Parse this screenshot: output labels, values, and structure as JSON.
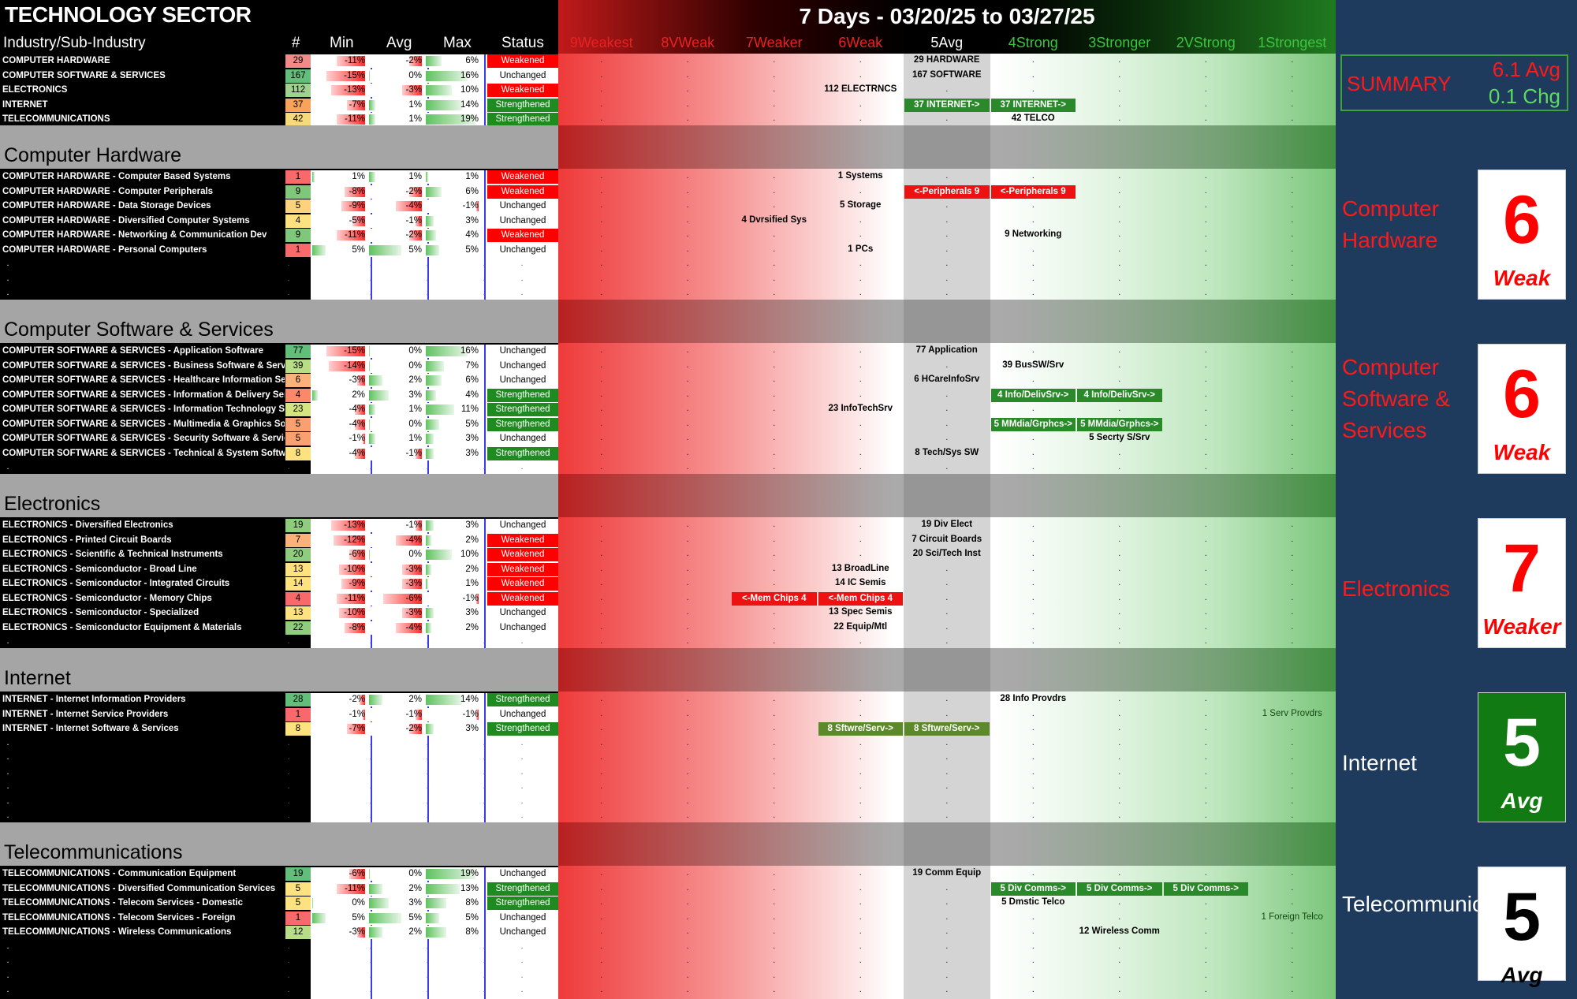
{
  "title": "TECHNOLOGY SECTOR",
  "period": "7 Days - 03/20/25 to 03/27/25",
  "columns": {
    "industry": "Industry/Sub-Industry",
    "count": "#",
    "min": "Min",
    "avg": "Avg",
    "max": "Max",
    "status": "Status"
  },
  "bands": [
    {
      "label": "9Weakest",
      "color": "#e82222"
    },
    {
      "label": "8VWeak",
      "color": "#e82222"
    },
    {
      "label": "7Weaker",
      "color": "#e82222"
    },
    {
      "label": "6Weak",
      "color": "#e82222"
    },
    {
      "label": "5Avg",
      "color": "#ffffff"
    },
    {
      "label": "4Strong",
      "color": "#3ec43e"
    },
    {
      "label": "3Stronger",
      "color": "#3ec43e"
    },
    {
      "label": "2VStrong",
      "color": "#3ec43e"
    },
    {
      "label": "1Strongest",
      "color": "#3ec43e"
    }
  ],
  "colors": {
    "weakened": "#ff0000",
    "strengthened": "#1f8a1f",
    "unchanged": "#ffffff",
    "pillRed": "#ee1111",
    "pillGreen": "#2a8a2a",
    "pillOlive": "#5c8a2a"
  },
  "summary": {
    "label": "SUMMARY",
    "avg": "6.1 Avg",
    "chg": "0.1 Chg"
  },
  "sections": [
    {
      "key": "overview",
      "title": "",
      "score": null,
      "rows": [
        {
          "name": "COMPUTER HARDWARE",
          "count": "29",
          "cc": "#f28a8a",
          "min": "-11%",
          "avg": "-2%",
          "max": "6%",
          "mn": -11,
          "av": -2,
          "mx": 6,
          "status": "Weakened",
          "marks": [
            {
              "band": 4,
              "text": "29 HARDWARE"
            }
          ]
        },
        {
          "name": "COMPUTER SOFTWARE & SERVICES",
          "count": "167",
          "cc": "#63be7b",
          "min": "-15%",
          "avg": "0%",
          "max": "16%",
          "mn": -15,
          "av": 0,
          "mx": 16,
          "status": "Unchanged",
          "marks": [
            {
              "band": 4,
              "text": "167 SOFTWARE"
            }
          ]
        },
        {
          "name": "ELECTRONICS",
          "count": "112",
          "cc": "#9fd28f",
          "min": "-13%",
          "avg": "-3%",
          "max": "10%",
          "mn": -13,
          "av": -3,
          "mx": 10,
          "status": "Weakened",
          "marks": [
            {
              "band": 3,
              "text": "112 ELECTRNCS"
            }
          ]
        },
        {
          "name": "INTERNET",
          "count": "37",
          "cc": "#f7a35a",
          "min": "-7%",
          "avg": "1%",
          "max": "14%",
          "mn": -7,
          "av": 1,
          "mx": 14,
          "status": "Strengthened",
          "pills": [
            {
              "band": 4,
              "text": "37 INTERNET->",
              "c": "g"
            },
            {
              "band": 5,
              "text": "37 INTERNET->",
              "c": "g"
            }
          ]
        },
        {
          "name": "TELECOMMUNICATIONS",
          "count": "42",
          "cc": "#f7d87a",
          "min": "-11%",
          "avg": "1%",
          "max": "19%",
          "mn": -11,
          "av": 1,
          "mx": 19,
          "status": "Strengthened",
          "marks": [
            {
              "band": 5,
              "text": "42 TELCO"
            }
          ]
        }
      ]
    },
    {
      "key": "hardware",
      "title": "Computer Hardware",
      "label": "Computer Hardware",
      "score": "6",
      "word": "Weak",
      "scoreColor": "#ff0000",
      "scoreBg": "#ffffff",
      "labelColor": "#ff1a1a",
      "rows": [
        {
          "name": "COMPUTER HARDWARE - Computer Based Systems",
          "count": "1",
          "cc": "#f8696b",
          "min": "1%",
          "avg": "1%",
          "max": "1%",
          "mn": 1,
          "av": 1,
          "mx": 1,
          "status": "Weakened",
          "marks": [
            {
              "band": 3,
              "text": "1 Systems"
            }
          ]
        },
        {
          "name": "COMPUTER HARDWARE - Computer Peripherals",
          "count": "9",
          "cc": "#7ec77b",
          "min": "-8%",
          "avg": "-2%",
          "max": "6%",
          "mn": -8,
          "av": -2,
          "mx": 6,
          "status": "Weakened",
          "pills": [
            {
              "band": 4,
              "text": "<-Peripherals 9",
              "c": "r"
            },
            {
              "band": 5,
              "text": "<-Peripherals 9",
              "c": "r"
            }
          ]
        },
        {
          "name": "COMPUTER HARDWARE - Data Storage Devices",
          "count": "5",
          "cc": "#fdd27f",
          "min": "-9%",
          "avg": "-4%",
          "max": "-1%",
          "mn": -9,
          "av": -4,
          "mx": -1,
          "status": "Unchanged",
          "marks": [
            {
              "band": 3,
              "text": "5 Storage"
            }
          ]
        },
        {
          "name": "COMPUTER HARDWARE - Diversified Computer Systems",
          "count": "4",
          "cc": "#fde27f",
          "min": "-5%",
          "avg": "-1%",
          "max": "3%",
          "mn": -5,
          "av": -1,
          "mx": 3,
          "status": "Unchanged",
          "marks": [
            {
              "band": 2,
              "text": "4 Dvrsified Sys"
            }
          ]
        },
        {
          "name": "COMPUTER HARDWARE - Networking & Communication Dev",
          "count": "9",
          "cc": "#7ec77b",
          "min": "-11%",
          "avg": "-2%",
          "max": "4%",
          "mn": -11,
          "av": -2,
          "mx": 4,
          "status": "Weakened",
          "marks": [
            {
              "band": 5,
              "text": "9 Networking"
            }
          ]
        },
        {
          "name": "COMPUTER HARDWARE - Personal Computers",
          "count": "1",
          "cc": "#f8696b",
          "min": "5%",
          "avg": "5%",
          "max": "5%",
          "mn": 5,
          "av": 5,
          "mx": 5,
          "status": "Unchanged",
          "marks": [
            {
              "band": 3,
              "text": "1 PCs"
            }
          ]
        },
        {
          "empty": true
        },
        {
          "empty": true
        },
        {
          "empty": true
        }
      ]
    },
    {
      "key": "software",
      "title": "Computer Software & Services",
      "label": "Computer Software & Services",
      "score": "6",
      "word": "Weak",
      "scoreColor": "#ff0000",
      "scoreBg": "#ffffff",
      "labelColor": "#ff1a1a",
      "rows": [
        {
          "name": "COMPUTER SOFTWARE & SERVICES - Application Software",
          "count": "77",
          "cc": "#63be7b",
          "min": "-15%",
          "avg": "0%",
          "max": "16%",
          "mn": -15,
          "av": 0,
          "mx": 16,
          "status": "Unchanged",
          "marks": [
            {
              "band": 4,
              "text": "77 Application"
            }
          ]
        },
        {
          "name": "COMPUTER SOFTWARE & SERVICES - Business Software & Services",
          "count": "39",
          "cc": "#b7dd86",
          "min": "-14%",
          "avg": "0%",
          "max": "7%",
          "mn": -14,
          "av": 0,
          "mx": 7,
          "status": "Unchanged",
          "marks": [
            {
              "band": 5,
              "text": "39 BusSW/Srv"
            }
          ]
        },
        {
          "name": "COMPUTER SOFTWARE & SERVICES - Healthcare Information Services",
          "count": "6",
          "cc": "#fbb27a",
          "min": "-3%",
          "avg": "2%",
          "max": "6%",
          "mn": -3,
          "av": 2,
          "mx": 6,
          "status": "Unchanged",
          "marks": [
            {
              "band": 4,
              "text": "6 HCareInfoSrv"
            }
          ]
        },
        {
          "name": "COMPUTER SOFTWARE & SERVICES - Information & Delivery Services",
          "count": "4",
          "cc": "#f8896b",
          "min": "2%",
          "avg": "3%",
          "max": "4%",
          "mn": 2,
          "av": 3,
          "mx": 4,
          "status": "Strengthened",
          "pills": [
            {
              "band": 5,
              "text": "4 Info/DelivSrv->",
              "c": "g"
            },
            {
              "band": 6,
              "text": "4 Info/DelivSrv->",
              "c": "g"
            }
          ]
        },
        {
          "name": "COMPUTER SOFTWARE & SERVICES - Information Technology Services",
          "count": "23",
          "cc": "#d4e482",
          "min": "-4%",
          "avg": "1%",
          "max": "11%",
          "mn": -4,
          "av": 1,
          "mx": 11,
          "status": "Strengthened",
          "marks": [
            {
              "band": 3,
              "text": "23 InfoTechSrv"
            }
          ]
        },
        {
          "name": "COMPUTER SOFTWARE & SERVICES - Multimedia & Graphics Software",
          "count": "5",
          "cc": "#f9a070",
          "min": "-4%",
          "avg": "0%",
          "max": "5%",
          "mn": -4,
          "av": 0,
          "mx": 5,
          "status": "Strengthened",
          "pills": [
            {
              "band": 5,
              "text": "5 MMdia/Grphcs->",
              "c": "g"
            },
            {
              "band": 6,
              "text": "5 MMdia/Grphcs->",
              "c": "g"
            }
          ]
        },
        {
          "name": "COMPUTER SOFTWARE & SERVICES - Security Software & Services",
          "count": "5",
          "cc": "#f9a070",
          "min": "-1%",
          "avg": "1%",
          "max": "3%",
          "mn": -1,
          "av": 1,
          "mx": 3,
          "status": "Unchanged",
          "marks": [
            {
              "band": 6,
              "text": "5 Secrty S/Srv"
            }
          ]
        },
        {
          "name": "COMPUTER SOFTWARE & SERVICES - Technical & System Software",
          "count": "8",
          "cc": "#fde27f",
          "min": "-4%",
          "avg": "-1%",
          "max": "3%",
          "mn": -4,
          "av": -1,
          "mx": 3,
          "status": "Strengthened",
          "marks": [
            {
              "band": 4,
              "text": "8 Tech/Sys SW"
            }
          ]
        },
        {
          "empty": true
        }
      ]
    },
    {
      "key": "electronics",
      "title": "Electronics",
      "label": "Electronics",
      "score": "7",
      "word": "Weaker",
      "scoreColor": "#ff0000",
      "scoreBg": "#ffffff",
      "labelColor": "#ff1a1a",
      "rows": [
        {
          "name": "ELECTRONICS - Diversified Electronics",
          "count": "19",
          "cc": "#8fcc7e",
          "min": "-13%",
          "avg": "-1%",
          "max": "3%",
          "mn": -13,
          "av": -1,
          "mx": 3,
          "status": "Unchanged",
          "marks": [
            {
              "band": 4,
              "text": "19 Div Elect"
            }
          ]
        },
        {
          "name": "ELECTRONICS - Printed Circuit Boards",
          "count": "7",
          "cc": "#fbb27a",
          "min": "-12%",
          "avg": "-4%",
          "max": "2%",
          "mn": -12,
          "av": -4,
          "mx": 2,
          "status": "Weakened",
          "marks": [
            {
              "band": 4,
              "text": "7 Circuit Boards"
            }
          ]
        },
        {
          "name": "ELECTRONICS - Scientific & Technical Instruments",
          "count": "20",
          "cc": "#8fcc7e",
          "min": "-6%",
          "avg": "0%",
          "max": "10%",
          "mn": -6,
          "av": 0,
          "mx": 10,
          "status": "Weakened",
          "marks": [
            {
              "band": 4,
              "text": "20 Sci/Tech Inst"
            }
          ]
        },
        {
          "name": "ELECTRONICS - Semiconductor - Broad Line",
          "count": "13",
          "cc": "#fde27f",
          "min": "-10%",
          "avg": "-3%",
          "max": "2%",
          "mn": -10,
          "av": -3,
          "mx": 2,
          "status": "Weakened",
          "marks": [
            {
              "band": 3,
              "text": "13 BroadLine"
            }
          ]
        },
        {
          "name": "ELECTRONICS - Semiconductor - Integrated Circuits",
          "count": "14",
          "cc": "#fde27f",
          "min": "-9%",
          "avg": "-3%",
          "max": "1%",
          "mn": -9,
          "av": -3,
          "mx": 1,
          "status": "Weakened",
          "marks": [
            {
              "band": 3,
              "text": "14 IC Semis"
            }
          ]
        },
        {
          "name": "ELECTRONICS - Semiconductor - Memory Chips",
          "count": "4",
          "cc": "#f8696b",
          "min": "-11%",
          "avg": "-6%",
          "max": "-1%",
          "mn": -11,
          "av": -6,
          "mx": -1,
          "status": "Weakened",
          "pills": [
            {
              "band": 2,
              "text": "<-Mem Chips 4",
              "c": "r"
            },
            {
              "band": 3,
              "text": "<-Mem Chips 4",
              "c": "r"
            }
          ]
        },
        {
          "name": "ELECTRONICS - Semiconductor - Specialized",
          "count": "13",
          "cc": "#fde27f",
          "min": "-10%",
          "avg": "-3%",
          "max": "3%",
          "mn": -10,
          "av": -3,
          "mx": 3,
          "status": "Unchanged",
          "marks": [
            {
              "band": 3,
              "text": "13 Spec Semis"
            }
          ]
        },
        {
          "name": "ELECTRONICS - Semiconductor Equipment & Materials",
          "count": "22",
          "cc": "#8fcc7e",
          "min": "-8%",
          "avg": "-4%",
          "max": "2%",
          "mn": -8,
          "av": -4,
          "mx": 2,
          "status": "Unchanged",
          "marks": [
            {
              "band": 3,
              "text": "22 Equip/Mtl"
            }
          ]
        },
        {
          "empty": true
        }
      ]
    },
    {
      "key": "internet",
      "title": "Internet",
      "label": "Internet",
      "score": "5",
      "word": "Avg",
      "scoreColor": "#ffffff",
      "scoreBg": "#127a12",
      "labelColor": "#ffffff",
      "rows": [
        {
          "name": "INTERNET - Internet Information Providers",
          "count": "28",
          "cc": "#63be7b",
          "min": "-2%",
          "avg": "2%",
          "max": "14%",
          "mn": -2,
          "av": 2,
          "mx": 14,
          "status": "Strengthened",
          "marks": [
            {
              "band": 5,
              "text": "28 Info Provdrs"
            }
          ]
        },
        {
          "name": "INTERNET - Internet Service Providers",
          "count": "1",
          "cc": "#f8696b",
          "min": "-1%",
          "avg": "-1%",
          "max": "-1%",
          "mn": -1,
          "av": -1,
          "mx": -1,
          "status": "Unchanged",
          "marks": [
            {
              "band": 8,
              "text": "1 Serv Provdrs"
            }
          ]
        },
        {
          "name": "INTERNET - Internet Software & Services",
          "count": "8",
          "cc": "#fde27f",
          "min": "-7%",
          "avg": "-2%",
          "max": "3%",
          "mn": -7,
          "av": -2,
          "mx": 3,
          "status": "Strengthened",
          "pills": [
            {
              "band": 3,
              "text": "8 Sftwre/Serv->",
              "c": "o"
            },
            {
              "band": 4,
              "text": "8 Sftwre/Serv->",
              "c": "o"
            }
          ]
        },
        {
          "empty": true
        },
        {
          "empty": true
        },
        {
          "empty": true
        },
        {
          "empty": true
        },
        {
          "empty": true
        },
        {
          "empty": true
        }
      ]
    },
    {
      "key": "telecom",
      "title": "Telecommunications",
      "label": "Telecommunications",
      "score": "5",
      "word": "Avg",
      "scoreColor": "#000000",
      "scoreBg": "#ffffff",
      "labelColor": "#ffffff",
      "rows": [
        {
          "name": "TELECOMMUNICATIONS - Communication Equipment",
          "count": "19",
          "cc": "#63be7b",
          "min": "-6%",
          "avg": "0%",
          "max": "19%",
          "mn": -6,
          "av": 0,
          "mx": 19,
          "status": "Unchanged",
          "marks": [
            {
              "band": 4,
              "text": "19 Comm Equip"
            }
          ]
        },
        {
          "name": "TELECOMMUNICATIONS - Diversified Communication Services",
          "count": "5",
          "cc": "#fde27f",
          "min": "-11%",
          "avg": "2%",
          "max": "13%",
          "mn": -11,
          "av": 2,
          "mx": 13,
          "status": "Strengthened",
          "pills": [
            {
              "band": 5,
              "text": "5 Div Comms->",
              "c": "g"
            },
            {
              "band": 6,
              "text": "5 Div Comms->",
              "c": "g"
            },
            {
              "band": 7,
              "text": "5 Div Comms->",
              "c": "g"
            }
          ]
        },
        {
          "name": "TELECOMMUNICATIONS - Telecom Services - Domestic",
          "count": "5",
          "cc": "#fde27f",
          "min": "0%",
          "avg": "3%",
          "max": "8%",
          "mn": 0,
          "av": 3,
          "mx": 8,
          "status": "Strengthened",
          "marks": [
            {
              "band": 5,
              "text": "5 Dmstic Telco"
            }
          ]
        },
        {
          "name": "TELECOMMUNICATIONS - Telecom Services - Foreign",
          "count": "1",
          "cc": "#f8696b",
          "min": "5%",
          "avg": "5%",
          "max": "5%",
          "mn": 5,
          "av": 5,
          "mx": 5,
          "status": "Unchanged",
          "marks": [
            {
              "band": 8,
              "text": "1 Foreign Telco"
            }
          ]
        },
        {
          "name": "TELECOMMUNICATIONS - Wireless Communications",
          "count": "12",
          "cc": "#b7dd86",
          "min": "-3%",
          "avg": "2%",
          "max": "8%",
          "mn": -3,
          "av": 2,
          "mx": 8,
          "status": "Unchanged",
          "marks": [
            {
              "band": 6,
              "text": "12 Wireless Comm"
            }
          ]
        },
        {
          "empty": true
        },
        {
          "empty": true
        },
        {
          "empty": true
        },
        {
          "empty": true
        }
      ]
    }
  ]
}
